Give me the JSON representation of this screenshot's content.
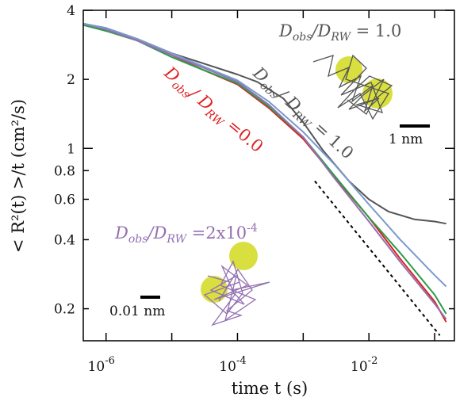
{
  "chart_data": {
    "type": "line",
    "xlabel": "time t (s)",
    "ylabel": "< R²(t) >/t (cm²/s)",
    "xscale": "log",
    "yscale": "log",
    "xlim": [
      4.5e-07,
      0.2
    ],
    "ylim": [
      0.145,
      4
    ],
    "x_ticks": [
      {
        "value": 1e-06,
        "label": "10",
        "exp": "-6"
      },
      {
        "value": 0.0001,
        "label": "10",
        "exp": "-4"
      },
      {
        "value": 0.01,
        "label": "10",
        "exp": "-2"
      }
    ],
    "y_ticks": [
      {
        "value": 0.2,
        "label": "0.2"
      },
      {
        "value": 0.4,
        "label": "0.4"
      },
      {
        "value": 0.6,
        "label": "0.6"
      },
      {
        "value": 0.8,
        "label": "0.8"
      },
      {
        "value": 1,
        "label": "1"
      },
      {
        "value": 2,
        "label": "2"
      },
      {
        "value": 4,
        "label": "4"
      }
    ],
    "grid": false,
    "series": [
      {
        "key": "gray",
        "color": "#555555",
        "x": [
          4.5e-07,
          1e-06,
          3e-06,
          1e-05,
          3e-05,
          0.0001,
          0.0002,
          0.0005,
          0.001,
          0.002,
          0.005,
          0.01,
          0.02,
          0.05,
          0.1,
          0.15
        ],
        "y": [
          3.5,
          3.35,
          3.0,
          2.6,
          2.35,
          2.1,
          1.95,
          1.65,
          1.3,
          0.98,
          0.72,
          0.6,
          0.53,
          0.49,
          0.48,
          0.47
        ]
      },
      {
        "key": "red",
        "color": "#e02020",
        "x": [
          4.5e-07,
          1e-06,
          3e-06,
          1e-05,
          3e-05,
          0.0001,
          0.0003,
          0.001,
          0.003,
          0.01,
          0.03,
          0.1,
          0.15
        ],
        "y": [
          3.5,
          3.3,
          2.95,
          2.55,
          2.2,
          1.9,
          1.5,
          1.1,
          0.75,
          0.5,
          0.33,
          0.215,
          0.175
        ]
      },
      {
        "key": "green",
        "color": "#2a9c4a",
        "x": [
          4.5e-07,
          1e-06,
          3e-06,
          1e-05,
          3e-05,
          0.0001,
          0.0003,
          0.001,
          0.003,
          0.01,
          0.03,
          0.1,
          0.15
        ],
        "y": [
          3.45,
          3.25,
          2.95,
          2.5,
          2.2,
          1.92,
          1.52,
          1.12,
          0.76,
          0.5,
          0.35,
          0.23,
          0.19
        ]
      },
      {
        "key": "purple",
        "color": "#9370b0",
        "x": [
          4.5e-07,
          1e-06,
          3e-06,
          1e-05,
          3e-05,
          0.0001,
          0.0003,
          0.001,
          0.003,
          0.01,
          0.03,
          0.1,
          0.15
        ],
        "y": [
          3.5,
          3.3,
          2.95,
          2.55,
          2.25,
          1.95,
          1.55,
          1.12,
          0.74,
          0.48,
          0.32,
          0.21,
          0.18
        ]
      },
      {
        "key": "blue",
        "color": "#7a9acc",
        "x": [
          4.5e-07,
          1e-06,
          3e-06,
          1e-05,
          3e-05,
          0.0001,
          0.0003,
          0.001,
          0.003,
          0.01,
          0.03,
          0.1,
          0.15
        ],
        "y": [
          3.5,
          3.35,
          3.0,
          2.6,
          2.28,
          1.98,
          1.6,
          1.18,
          0.85,
          0.57,
          0.4,
          0.28,
          0.25
        ]
      }
    ],
    "reference_line": {
      "style": "dashed",
      "color": "#000000",
      "x": [
        0.0015,
        0.12
      ],
      "y": [
        0.72,
        0.153
      ]
    },
    "annotations": {
      "red": {
        "text_main": "D",
        "text_sub": "obs",
        "text_mid": "/ D",
        "text_sub2": "RW",
        "text_end": " =0.0",
        "color": "#e02020"
      },
      "gray_rotated": {
        "text_main": "D",
        "text_sub": "obs",
        "text_mid": "/ D",
        "text_sub2": "RW",
        "text_end": " = 1.0",
        "color": "#555555"
      },
      "gray_corner": {
        "text_main": "D",
        "text_sub": "obs",
        "text_mid": "/D",
        "text_sub2": "RW",
        "text_end": " = 1.0",
        "color": "#555555"
      },
      "purple": {
        "text_main": "D",
        "text_sub": "obs",
        "text_mid": "/D",
        "text_sub2": "RW",
        "text_end": " =2x10",
        "text_exp": "-4",
        "color": "#9370b0"
      }
    },
    "scale_bars": [
      {
        "label": "1 nm"
      },
      {
        "label": "0.01 nm"
      }
    ],
    "inset_colors": {
      "blob": "#d4dc2a",
      "gray_trace": "#555555",
      "purple_trace": "#9370b0"
    }
  }
}
